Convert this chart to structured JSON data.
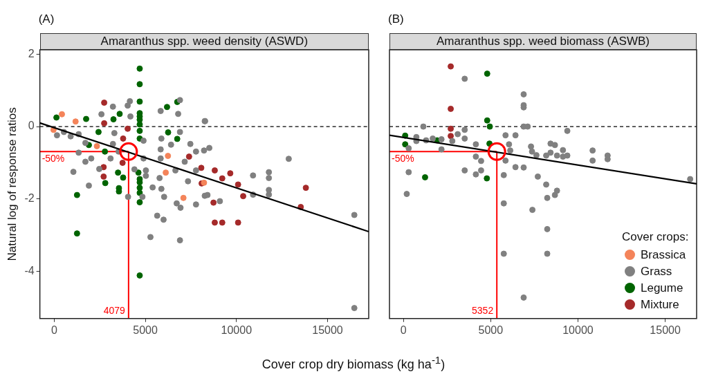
{
  "chart_data": [
    {
      "type": "scatter",
      "title": "Amaranthus spp. weed density (ASWD)",
      "xlabel": "Cover crop dry biomass (kg ha$^{-1}$)",
      "ylabel": "Natural log of response ratios",
      "annotations": [
        "(A)",
        {
          "text": "-50%",
          "y": -0.69
        },
        {
          "text": "4079",
          "x": 4079
        }
      ],
      "xlim": [
        -790,
        17260
      ],
      "xticks": [
        0,
        5000,
        10000,
        15000
      ],
      "ylim": [
        -5.3,
        2.12
      ],
      "yticks": [
        -4,
        -2,
        0,
        2
      ],
      "marker": "circle",
      "ref_lines": [
        {
          "axis": "y",
          "value": 0,
          "color": "#000000",
          "line_style": "dashed"
        },
        {
          "axis": "y",
          "value": -0.69,
          "color": "#ff0000"
        },
        {
          "axis": "x",
          "value": 4079,
          "color": "#ff0000"
        }
      ],
      "series": [
        {
          "color": "#f4845a",
          "x": [
            420,
            1170,
            -40,
            2340,
            6240,
            6120,
            7090,
            8220
          ],
          "values": [
            0.34,
            0.14,
            -0.09,
            -0.54,
            -0.81,
            -1.27,
            -1.97,
            -1.55
          ]
        },
        {
          "color": "#808080",
          "x": [
            150,
            530,
            900,
            1340,
            1710,
            1340,
            1710,
            2030,
            2590,
            3220,
            4150,
            4030,
            4180,
            3300,
            3220,
            3090,
            2470,
            5840,
            6800,
            6900,
            5880,
            6410,
            5840,
            5840,
            6900,
            7470,
            7780,
            7160,
            6650,
            8280,
            7780,
            4900,
            4900,
            5030,
            3530,
            4400,
            1050,
            1900,
            4050,
            4840,
            5400,
            5880,
            6030,
            6720,
            6930,
            6000,
            5650,
            5280,
            6900,
            7340,
            7780,
            8260,
            5030,
            5780,
            8260,
            8510,
            8220,
            12870,
            10910,
            11780,
            11780,
            11780,
            11780,
            10910,
            9090,
            8410,
            16470,
            16470
          ],
          "values": [
            -0.24,
            -0.15,
            -0.27,
            -0.21,
            -0.45,
            -0.72,
            -0.97,
            -0.88,
            0.34,
            0.55,
            0.7,
            0.58,
            0.28,
            -0.18,
            -0.48,
            -0.88,
            -1.17,
            0.43,
            0.35,
            0.73,
            -0.33,
            -0.5,
            -0.63,
            -0.88,
            -0.15,
            -0.48,
            -0.69,
            -0.97,
            -1.21,
            0.15,
            -1.21,
            -0.39,
            -0.88,
            -1.21,
            -0.69,
            -1.18,
            -1.25,
            -1.63,
            -1.94,
            -1.94,
            -1.68,
            -1.72,
            -1.94,
            -2.12,
            -2.24,
            -2.57,
            -2.46,
            -3.05,
            -3.14,
            -1.51,
            -2.15,
            -1.91,
            -1.36,
            -1.42,
            0.15,
            -0.59,
            -0.66,
            -0.89,
            -1.35,
            -1.26,
            -1.42,
            -1.75,
            -1.88,
            -1.88,
            -2.06,
            -1.89,
            -2.44,
            -5.01
          ]
        },
        {
          "color": "#006400",
          "x": [
            4690,
            4690,
            4690,
            4690,
            4690,
            4690,
            4690,
            4690,
            4690,
            4690,
            4690,
            4690,
            4690,
            4690,
            4690,
            6190,
            6750,
            3590,
            3250,
            1750,
            120,
            6250,
            6750,
            2430,
            1900,
            2780,
            3500,
            3780,
            2800,
            3550,
            3550,
            1250,
            1250,
            4620
          ],
          "values": [
            1.6,
            1.17,
            0.69,
            0.37,
            0.28,
            0.19,
            0.06,
            -0.12,
            -0.33,
            -1.45,
            -1.54,
            -1.69,
            -1.83,
            -2.09,
            -4.11,
            0.54,
            0.68,
            0.35,
            0.2,
            0.21,
            0.25,
            -0.16,
            -0.34,
            -0.15,
            -0.51,
            -0.69,
            -1.27,
            -1.41,
            -1.56,
            -1.7,
            -1.79,
            -1.89,
            -2.95,
            -1.27
          ]
        },
        {
          "color": "#a52a2a",
          "x": [
            2740,
            2740,
            3780,
            4030,
            7400,
            8070,
            2710,
            2710,
            3750,
            8090,
            8810,
            9220,
            9660,
            10090,
            10370,
            8740,
            8810,
            9220,
            10090,
            13810,
            13530
          ],
          "values": [
            0.66,
            0.09,
            -0.33,
            -0.06,
            -0.83,
            -1.14,
            -1.12,
            -1.38,
            -1.0,
            -1.57,
            -1.21,
            -1.43,
            -1.29,
            -1.6,
            -1.92,
            -2.1,
            -2.65,
            -2.65,
            -2.65,
            -1.69,
            -2.22
          ]
        },
        {
          "type": "line",
          "marker": "none",
          "color": "#000000",
          "x": [
            -790,
            17260
          ],
          "values": [
            0.1,
            -2.9
          ]
        },
        {
          "type": "scatter",
          "color": "#ff0000",
          "x": [
            4079
          ],
          "values": [
            -0.69
          ]
        }
      ]
    },
    {
      "type": "scatter",
      "title": "Amaranthus spp. weed biomass (ASWB)",
      "annotations": [
        "(B)",
        {
          "text": "-50%",
          "y": -0.69
        },
        {
          "text": "5352",
          "x": 5352
        }
      ],
      "xlim": [
        -800,
        16800
      ],
      "xticks": [
        0,
        5000,
        10000,
        15000
      ],
      "ylim": [
        -5.3,
        2.12
      ],
      "yticks": [
        -4,
        -2,
        0,
        2
      ],
      "tick_labels": "x",
      "marker": "circle",
      "legend": "bottom right",
      "legend_title": "Cover crops:",
      "ref_lines": [
        {
          "axis": "y",
          "value": 0,
          "color": "#000000",
          "line_style": "dashed"
        },
        {
          "axis": "y",
          "value": -0.69,
          "color": "#ff0000"
        },
        {
          "axis": "x",
          "value": 5352,
          "color": "#ff0000"
        }
      ],
      "series": [
        {
          "name": "Brassica",
          "color": "#f4845a"
        },
        {
          "name": "Grass",
          "color": "#808080",
          "x": [
            3510,
            6890,
            6890,
            6890,
            6890,
            7120,
            9390,
            1140,
            740,
            740,
            1300,
            1680,
            2180,
            2180,
            3110,
            3510,
            3510,
            2800,
            300,
            300,
            190,
            3510,
            4150,
            4150,
            4450,
            4450,
            4150,
            5850,
            6420,
            6050,
            6120,
            5850,
            6420,
            6890,
            5750,
            5750,
            5750,
            6890,
            7310,
            7370,
            7620,
            7700,
            7390,
            8180,
            8430,
            8680,
            8430,
            8180,
            8240,
            8680,
            8800,
            8240,
            8240,
            8800,
            9140,
            9140,
            9390,
            10840,
            10840,
            11700,
            11700,
            16430
          ],
          "values": [
            1.32,
            0.89,
            0.59,
            0.53,
            0,
            0,
            -0.12,
            0,
            -0.29,
            -0.4,
            -0.38,
            -0.33,
            -0.35,
            -0.63,
            -0.21,
            -0.09,
            -0.33,
            -0.4,
            -0.6,
            -1.26,
            -1.86,
            -1.21,
            -0.49,
            -0.83,
            -0.95,
            -1.21,
            -1.32,
            -0.24,
            -0.24,
            -0.49,
            -0.66,
            -0.94,
            -1.12,
            -1.13,
            -1.34,
            -2.12,
            -3.51,
            -4.72,
            -0.55,
            -0.69,
            -0.79,
            -1.38,
            -2.3,
            -0.8,
            -0.47,
            -0.51,
            -0.72,
            -1.6,
            -1.97,
            -1.89,
            -1.77,
            -2.83,
            -3.51,
            -0.8,
            -0.65,
            -0.83,
            -0.8,
            -0.66,
            -0.94,
            -0.8,
            -0.9,
            -1.45
          ]
        },
        {
          "name": "Legume",
          "color": "#006400",
          "x": [
            4800,
            4800,
            4950,
            100,
            100,
            1930,
            1240,
            4780,
            4930
          ],
          "values": [
            1.46,
            0.17,
            0,
            -0.25,
            -0.49,
            -0.38,
            -1.4,
            -1.43,
            -0.47
          ]
        },
        {
          "name": "Mixture",
          "color": "#a52a2a",
          "x": [
            2710,
            2710,
            2710,
            2710
          ],
          "values": [
            1.66,
            0.49,
            -0.06,
            -0.26
          ]
        },
        {
          "type": "line",
          "marker": "none",
          "color": "#000000",
          "x": [
            -800,
            16800
          ],
          "values": [
            -0.24,
            -1.58
          ]
        },
        {
          "type": "scatter",
          "color": "#ff0000",
          "x": [
            5352
          ],
          "values": [
            -0.69
          ]
        }
      ]
    }
  ]
}
